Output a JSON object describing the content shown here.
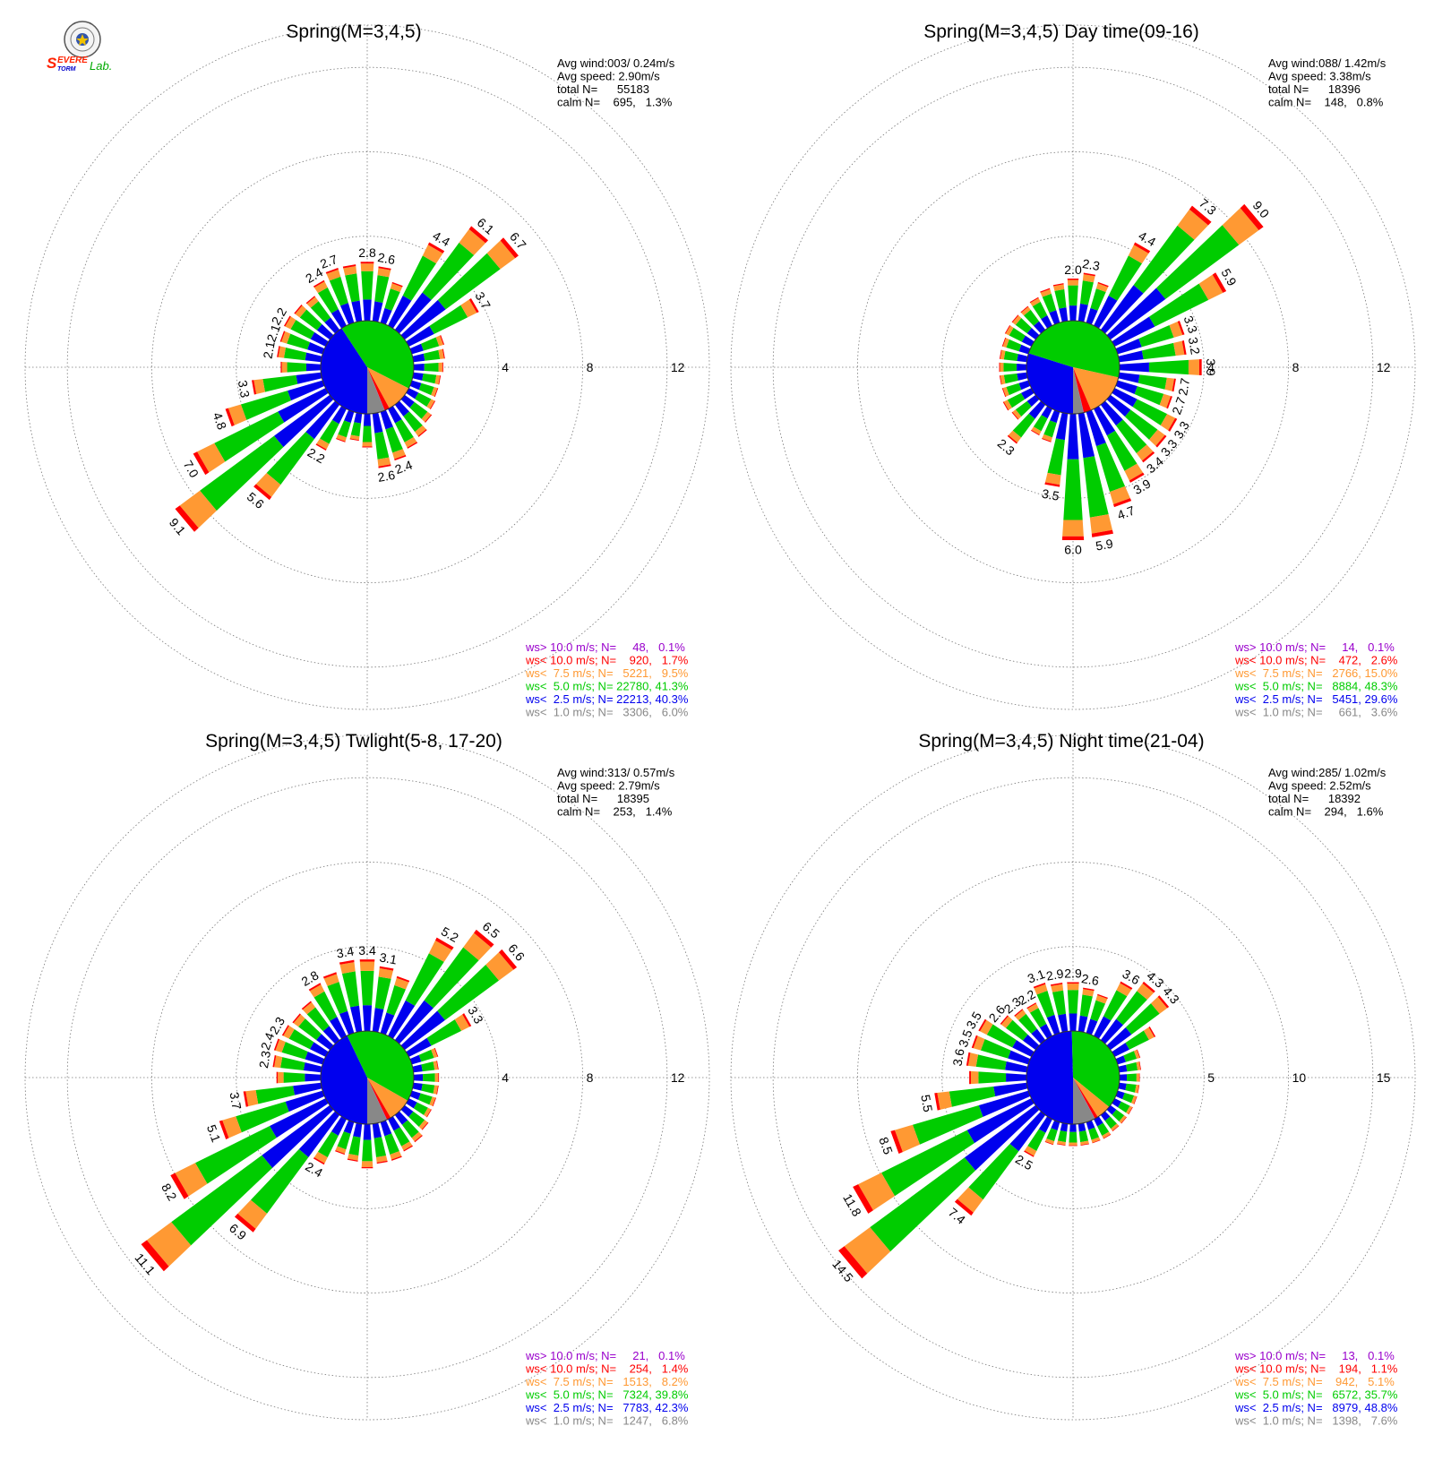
{
  "logo": {
    "text_s": "S",
    "text_evere": "EVERE",
    "text_torm": "TORM",
    "text_lab": "Lab."
  },
  "colors": {
    "ws_gt_10": "#9900cc",
    "ws_lt_10": "#ff0000",
    "ws_lt_7_5": "#ff9933",
    "ws_lt_5": "#00cc00",
    "ws_lt_2_5": "#0000ee",
    "ws_lt_1": "#888888",
    "ring": "#777777",
    "text": "#000000"
  },
  "chart_data": [
    {
      "type": "wind-rose",
      "title": "Spring(M=3,4,5)",
      "rings": [
        4,
        8,
        12
      ],
      "max_r": 14,
      "stats": [
        {
          "label": "Avg wind:003/ 0.24m/s"
        },
        {
          "label": "Avg speed: 2.90m/s"
        },
        {
          "label": "total N=      55183"
        },
        {
          "label": "calm N=    695,   1.3%"
        }
      ],
      "legend": [
        {
          "label": "ws> 10.0 m/s; N=     48,   0.1%",
          "color": "#9900cc"
        },
        {
          "label": "ws< 10.0 m/s; N=    920,   1.7%",
          "color": "#ff0000"
        },
        {
          "label": "ws<  7.5 m/s; N=   5221,   9.5%",
          "color": "#ff9933"
        },
        {
          "label": "ws<  5.0 m/s; N= 22780, 41.3%",
          "color": "#00cc00"
        },
        {
          "label": "ws<  2.5 m/s; N= 22213, 40.3%",
          "color": "#0000ee"
        },
        {
          "label": "ws<  1.0 m/s; N=   3306,   6.0%",
          "color": "#888888"
        }
      ],
      "core": [
        40.3,
        41.3,
        9.5,
        1.7,
        0.1,
        6.0
      ],
      "sectors": [
        {
          "dir": 0,
          "value": 2.8,
          "label": "2.8"
        },
        {
          "dir": 10,
          "value": 2.6,
          "label": "2.6"
        },
        {
          "dir": 20,
          "value": 2.0
        },
        {
          "dir": 30,
          "value": 4.4,
          "label": "4.4"
        },
        {
          "dir": 40,
          "value": 6.1,
          "label": "6.1"
        },
        {
          "dir": 50,
          "value": 6.7,
          "label": "6.7"
        },
        {
          "dir": 60,
          "value": 3.7,
          "label": "3.7"
        },
        {
          "dir": 70,
          "value": 1.6
        },
        {
          "dir": 80,
          "value": 1.5
        },
        {
          "dir": 90,
          "value": 1.4
        },
        {
          "dir": 100,
          "value": 1.3
        },
        {
          "dir": 110,
          "value": 1.3
        },
        {
          "dir": 120,
          "value": 1.4
        },
        {
          "dir": 130,
          "value": 1.6
        },
        {
          "dir": 140,
          "value": 1.9
        },
        {
          "dir": 150,
          "value": 2.1
        },
        {
          "dir": 160,
          "value": 2.4,
          "label": "2.4"
        },
        {
          "dir": 170,
          "value": 2.6,
          "label": "2.6"
        },
        {
          "dir": 180,
          "value": 1.6
        },
        {
          "dir": 190,
          "value": 1.3
        },
        {
          "dir": 200,
          "value": 1.5
        },
        {
          "dir": 210,
          "value": 2.2,
          "label": "2.2"
        },
        {
          "dir": 220,
          "value": 5.6,
          "label": "5.6"
        },
        {
          "dir": 230,
          "value": 9.1,
          "label": "9.1"
        },
        {
          "dir": 240,
          "value": 7.0,
          "label": "7.0"
        },
        {
          "dir": 250,
          "value": 4.8,
          "label": "4.8"
        },
        {
          "dir": 260,
          "value": 3.3,
          "label": "3.3"
        },
        {
          "dir": 270,
          "value": 1.9
        },
        {
          "dir": 280,
          "value": 2.1,
          "label": "2.1"
        },
        {
          "dir": 290,
          "value": 2.1,
          "label": "2.1"
        },
        {
          "dir": 300,
          "value": 2.2,
          "label": "2.2"
        },
        {
          "dir": 310,
          "value": 2.1
        },
        {
          "dir": 320,
          "value": 2.0
        },
        {
          "dir": 330,
          "value": 2.4,
          "label": "2.4"
        },
        {
          "dir": 340,
          "value": 2.7,
          "label": "2.7"
        },
        {
          "dir": 350,
          "value": 2.7
        }
      ]
    },
    {
      "type": "wind-rose",
      "title": "Spring(M=3,4,5) Day time(09-16)",
      "rings": [
        4,
        8,
        12
      ],
      "max_r": 14,
      "stats": [
        {
          "label": "Avg wind:088/ 1.42m/s"
        },
        {
          "label": "Avg speed: 3.38m/s"
        },
        {
          "label": "total N=      18396"
        },
        {
          "label": "calm N=    148,   0.8%"
        }
      ],
      "legend": [
        {
          "label": "ws> 10.0 m/s; N=     14,   0.1%",
          "color": "#9900cc"
        },
        {
          "label": "ws< 10.0 m/s; N=    472,   2.6%",
          "color": "#ff0000"
        },
        {
          "label": "ws<  7.5 m/s; N=   2766, 15.0%",
          "color": "#ff9933"
        },
        {
          "label": "ws<  5.0 m/s; N=   8884, 48.3%",
          "color": "#00cc00"
        },
        {
          "label": "ws<  2.5 m/s; N=   5451, 29.6%",
          "color": "#0000ee"
        },
        {
          "label": "ws<  1.0 m/s; N=     661,   3.6%",
          "color": "#888888"
        }
      ],
      "core": [
        29.6,
        48.3,
        15.0,
        2.6,
        0.1,
        3.6
      ],
      "sectors": [
        {
          "dir": 0,
          "value": 2.0,
          "label": "2.0"
        },
        {
          "dir": 10,
          "value": 2.3,
          "label": "2.3"
        },
        {
          "dir": 20,
          "value": 2.0
        },
        {
          "dir": 30,
          "value": 4.4,
          "label": "4.4"
        },
        {
          "dir": 40,
          "value": 7.3,
          "label": "7.3"
        },
        {
          "dir": 50,
          "value": 9.0,
          "label": "9.0"
        },
        {
          "dir": 60,
          "value": 5.9,
          "label": "5.9"
        },
        {
          "dir": 70,
          "value": 3.3,
          "label": "3.3"
        },
        {
          "dir": 80,
          "value": 3.2,
          "label": "3.2"
        },
        {
          "dir": 90,
          "value": 3.9,
          "label": "3.9"
        },
        {
          "dir": 100,
          "value": 2.7,
          "label": "2.7"
        },
        {
          "dir": 110,
          "value": 2.7,
          "label": "2.7"
        },
        {
          "dir": 120,
          "value": 3.3,
          "label": "3.3"
        },
        {
          "dir": 130,
          "value": 3.3,
          "label": "3.3"
        },
        {
          "dir": 140,
          "value": 3.4,
          "label": "3.4"
        },
        {
          "dir": 150,
          "value": 3.9,
          "label": "3.9"
        },
        {
          "dir": 160,
          "value": 4.7,
          "label": "4.7"
        },
        {
          "dir": 170,
          "value": 5.9,
          "label": "5.9"
        },
        {
          "dir": 180,
          "value": 6.0,
          "label": "6.0"
        },
        {
          "dir": 190,
          "value": 3.5,
          "label": "3.5"
        },
        {
          "dir": 200,
          "value": 1.5
        },
        {
          "dir": 210,
          "value": 1.4
        },
        {
          "dir": 220,
          "value": 2.3,
          "label": "2.3"
        },
        {
          "dir": 230,
          "value": 1.4
        },
        {
          "dir": 240,
          "value": 1.5
        },
        {
          "dir": 250,
          "value": 1.3
        },
        {
          "dir": 260,
          "value": 1.3
        },
        {
          "dir": 270,
          "value": 1.3
        },
        {
          "dir": 280,
          "value": 1.3
        },
        {
          "dir": 290,
          "value": 1.3
        },
        {
          "dir": 300,
          "value": 1.4
        },
        {
          "dir": 310,
          "value": 1.4
        },
        {
          "dir": 320,
          "value": 1.4
        },
        {
          "dir": 330,
          "value": 1.5
        },
        {
          "dir": 340,
          "value": 1.7
        },
        {
          "dir": 350,
          "value": 1.8
        }
      ]
    },
    {
      "type": "wind-rose",
      "title": "Spring(M=3,4,5) Twlight(5-8, 17-20)",
      "rings": [
        4,
        8,
        12
      ],
      "max_r": 14,
      "stats": [
        {
          "label": "Avg wind:313/ 0.57m/s"
        },
        {
          "label": "Avg speed: 2.79m/s"
        },
        {
          "label": "total N=      18395"
        },
        {
          "label": "calm N=    253,   1.4%"
        }
      ],
      "legend": [
        {
          "label": "ws> 10.0 m/s; N=     21,   0.1%",
          "color": "#9900cc"
        },
        {
          "label": "ws< 10.0 m/s; N=    254,   1.4%",
          "color": "#ff0000"
        },
        {
          "label": "ws<  7.5 m/s; N=   1513,   8.2%",
          "color": "#ff9933"
        },
        {
          "label": "ws<  5.0 m/s; N=   7324, 39.8%",
          "color": "#00cc00"
        },
        {
          "label": "ws<  2.5 m/s; N=   7783, 42.3%",
          "color": "#0000ee"
        },
        {
          "label": "ws<  1.0 m/s; N=   1247,   6.8%",
          "color": "#888888"
        }
      ],
      "core": [
        42.3,
        39.8,
        8.2,
        1.4,
        0.1,
        6.8
      ],
      "sectors": [
        {
          "dir": 0,
          "value": 3.4,
          "label": "3.4"
        },
        {
          "dir": 10,
          "value": 3.1,
          "label": "3.1"
        },
        {
          "dir": 20,
          "value": 2.8
        },
        {
          "dir": 30,
          "value": 5.2,
          "label": "5.2"
        },
        {
          "dir": 40,
          "value": 6.5,
          "label": "6.5"
        },
        {
          "dir": 50,
          "value": 6.6,
          "label": "6.6"
        },
        {
          "dir": 60,
          "value": 3.3,
          "label": "3.3"
        },
        {
          "dir": 70,
          "value": 1.3
        },
        {
          "dir": 80,
          "value": 1.2
        },
        {
          "dir": 90,
          "value": 1.2
        },
        {
          "dir": 100,
          "value": 1.2
        },
        {
          "dir": 110,
          "value": 1.2
        },
        {
          "dir": 120,
          "value": 1.2
        },
        {
          "dir": 130,
          "value": 1.4
        },
        {
          "dir": 140,
          "value": 1.6
        },
        {
          "dir": 150,
          "value": 1.7
        },
        {
          "dir": 160,
          "value": 1.9
        },
        {
          "dir": 170,
          "value": 1.9
        },
        {
          "dir": 180,
          "value": 2.1
        },
        {
          "dir": 190,
          "value": 1.8
        },
        {
          "dir": 200,
          "value": 1.6
        },
        {
          "dir": 210,
          "value": 2.4,
          "label": "2.4"
        },
        {
          "dir": 220,
          "value": 6.9,
          "label": "6.9"
        },
        {
          "dir": 230,
          "value": 11.1,
          "label": "11.1"
        },
        {
          "dir": 240,
          "value": 8.2,
          "label": "8.2"
        },
        {
          "dir": 250,
          "value": 5.1,
          "label": "5.1"
        },
        {
          "dir": 260,
          "value": 3.7,
          "label": "3.7"
        },
        {
          "dir": 270,
          "value": 2.1
        },
        {
          "dir": 280,
          "value": 2.3,
          "label": "2.3"
        },
        {
          "dir": 290,
          "value": 2.4,
          "label": "2.4"
        },
        {
          "dir": 300,
          "value": 2.3,
          "label": "2.3"
        },
        {
          "dir": 310,
          "value": 2.2
        },
        {
          "dir": 320,
          "value": 2.3
        },
        {
          "dir": 330,
          "value": 2.8,
          "label": "2.8"
        },
        {
          "dir": 340,
          "value": 3.0
        },
        {
          "dir": 350,
          "value": 3.4,
          "label": "3.4"
        }
      ]
    },
    {
      "type": "wind-rose",
      "title": "Spring(M=3,4,5) Night time(21-04)",
      "rings": [
        5,
        10,
        15
      ],
      "max_r": 17.5,
      "stats": [
        {
          "label": "Avg wind:285/ 1.02m/s"
        },
        {
          "label": "Avg speed: 2.52m/s"
        },
        {
          "label": "total N=      18392"
        },
        {
          "label": "calm N=    294,   1.6%"
        }
      ],
      "legend": [
        {
          "label": "ws> 10.0 m/s; N=     13,   0.1%",
          "color": "#9900cc"
        },
        {
          "label": "ws< 10.0 m/s; N=    194,   1.1%",
          "color": "#ff0000"
        },
        {
          "label": "ws<  7.5 m/s; N=    942,   5.1%",
          "color": "#ff9933"
        },
        {
          "label": "ws<  5.0 m/s; N=   6572, 35.7%",
          "color": "#00cc00"
        },
        {
          "label": "ws<  2.5 m/s; N=   8979, 48.8%",
          "color": "#0000ee"
        },
        {
          "label": "ws<  1.0 m/s; N=   1398,   7.6%",
          "color": "#888888"
        }
      ],
      "core": [
        48.8,
        35.7,
        5.1,
        1.1,
        0.1,
        7.6
      ],
      "sectors": [
        {
          "dir": 0,
          "value": 2.9,
          "label": "2.9"
        },
        {
          "dir": 10,
          "value": 2.6,
          "label": "2.6"
        },
        {
          "dir": 20,
          "value": 2.4
        },
        {
          "dir": 30,
          "value": 3.6,
          "label": "3.6"
        },
        {
          "dir": 40,
          "value": 4.3,
          "label": "4.3"
        },
        {
          "dir": 50,
          "value": 4.3,
          "label": "4.3"
        },
        {
          "dir": 60,
          "value": 2.7
        },
        {
          "dir": 70,
          "value": 1.4
        },
        {
          "dir": 80,
          "value": 1.3
        },
        {
          "dir": 90,
          "value": 1.2
        },
        {
          "dir": 100,
          "value": 1.2
        },
        {
          "dir": 110,
          "value": 1.2
        },
        {
          "dir": 120,
          "value": 1.2
        },
        {
          "dir": 130,
          "value": 1.2
        },
        {
          "dir": 140,
          "value": 1.2
        },
        {
          "dir": 150,
          "value": 1.3
        },
        {
          "dir": 160,
          "value": 1.3
        },
        {
          "dir": 170,
          "value": 1.3
        },
        {
          "dir": 180,
          "value": 1.3
        },
        {
          "dir": 190,
          "value": 1.3
        },
        {
          "dir": 200,
          "value": 1.4
        },
        {
          "dir": 210,
          "value": 2.5,
          "label": "2.5"
        },
        {
          "dir": 220,
          "value": 7.4,
          "label": "7.4"
        },
        {
          "dir": 230,
          "value": 14.5,
          "label": "14.5"
        },
        {
          "dir": 240,
          "value": 11.8,
          "label": "11.8"
        },
        {
          "dir": 250,
          "value": 8.5,
          "label": "8.5"
        },
        {
          "dir": 260,
          "value": 5.5,
          "label": "5.5"
        },
        {
          "dir": 270,
          "value": 3.4
        },
        {
          "dir": 280,
          "value": 3.6,
          "label": "3.6"
        },
        {
          "dir": 290,
          "value": 3.5,
          "label": "3.5"
        },
        {
          "dir": 300,
          "value": 3.5,
          "label": "3.5"
        },
        {
          "dir": 310,
          "value": 2.6,
          "label": "2.6"
        },
        {
          "dir": 320,
          "value": 2.3,
          "label": "2.3"
        },
        {
          "dir": 330,
          "value": 2.2,
          "label": "2.2"
        },
        {
          "dir": 340,
          "value": 3.1,
          "label": "3.1"
        },
        {
          "dir": 350,
          "value": 2.9,
          "label": "2.9"
        }
      ]
    }
  ]
}
